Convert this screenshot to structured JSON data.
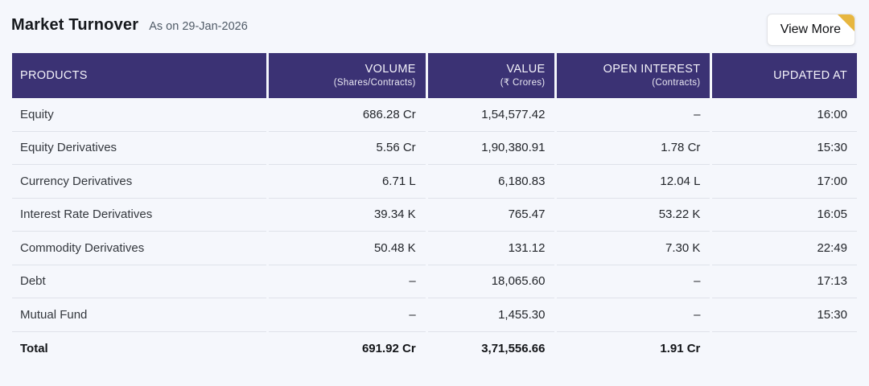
{
  "page": {
    "background": "#f5f7fc"
  },
  "header": {
    "title": "Market Turnover",
    "as_on": "As on 29-Jan-2026",
    "view_more_label": "View More",
    "fold_color": "#e7b63f"
  },
  "table": {
    "header_bg": "#3b3274",
    "columns": [
      {
        "label": "PRODUCTS",
        "sub": ""
      },
      {
        "label": "VOLUME",
        "sub": "(Shares/Contracts)"
      },
      {
        "label": "VALUE",
        "sub": "(₹ Crores)"
      },
      {
        "label": "OPEN INTEREST",
        "sub": "(Contracts)"
      },
      {
        "label": "UPDATED AT",
        "sub": ""
      }
    ],
    "rows": [
      {
        "product": "Equity",
        "volume": "686.28 Cr",
        "value": "1,54,577.42",
        "oi": "–",
        "updated": "16:00"
      },
      {
        "product": "Equity Derivatives",
        "volume": "5.56 Cr",
        "value": "1,90,380.91",
        "oi": "1.78 Cr",
        "updated": "15:30"
      },
      {
        "product": "Currency Derivatives",
        "volume": "6.71 L",
        "value": "6,180.83",
        "oi": "12.04 L",
        "updated": "17:00"
      },
      {
        "product": "Interest Rate Derivatives",
        "volume": "39.34 K",
        "value": "765.47",
        "oi": "53.22 K",
        "updated": "16:05"
      },
      {
        "product": "Commodity Derivatives",
        "volume": "50.48 K",
        "value": "131.12",
        "oi": "7.30 K",
        "updated": "22:49"
      },
      {
        "product": "Debt",
        "volume": "–",
        "value": "18,065.60",
        "oi": "–",
        "updated": "17:13"
      },
      {
        "product": "Mutual Fund",
        "volume": "–",
        "value": "1,455.30",
        "oi": "–",
        "updated": "15:30"
      }
    ],
    "total": {
      "product": "Total",
      "volume": "691.92 Cr",
      "value": "3,71,556.66",
      "oi": "1.91 Cr",
      "updated": ""
    }
  }
}
